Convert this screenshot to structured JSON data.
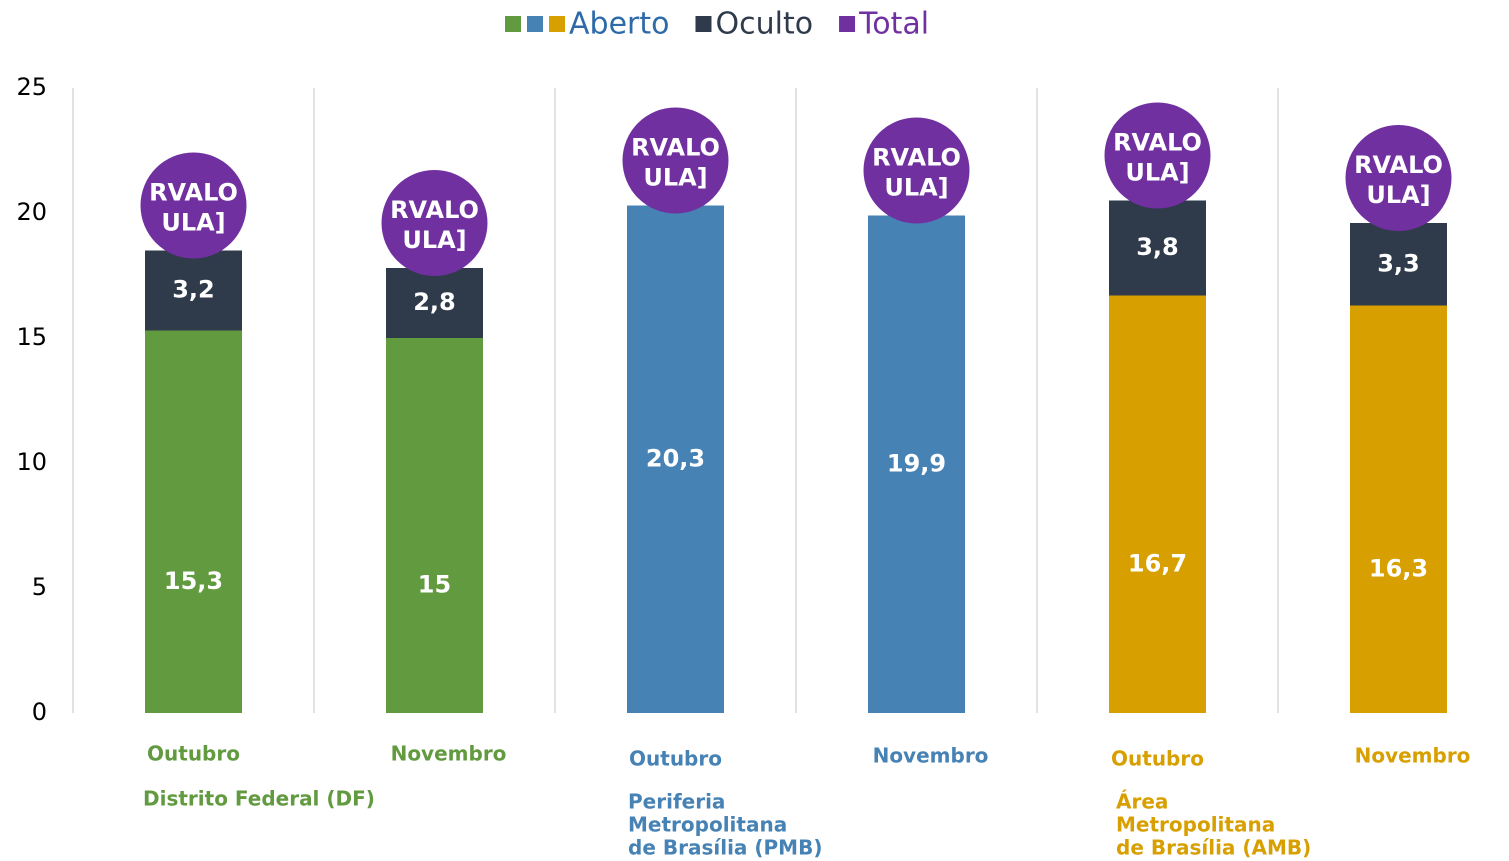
{
  "chart_data": {
    "type": "stacked_bar",
    "categories": [
      "Outubro",
      "Novembro",
      "Outubro",
      "Novembro",
      "Outubro",
      "Novembro"
    ],
    "groups": [
      {
        "label": [
          "Distrito Federal (DF)"
        ],
        "color": "#629a3f"
      },
      {
        "label": [
          "Periferia",
          "Metropolitana",
          "de Brasília (PMB)"
        ],
        "color": "#4682b4"
      },
      {
        "label": [
          "Área",
          "Metropolitana",
          "de Brasília (AMB)"
        ],
        "color": "#d89f00"
      }
    ],
    "series": [
      {
        "name": "Aberto",
        "colors": [
          "#629a3f",
          "#4682b4",
          "#d89f00"
        ],
        "legend_color": "#2e6aa8",
        "values": [
          15.3,
          15,
          20.3,
          19.9,
          16.7,
          16.3
        ],
        "value_labels": [
          "15,3",
          "15",
          "20,3",
          "19,9",
          "16,7",
          "16,3"
        ]
      },
      {
        "name": "Oculto",
        "color": "#2f3a4a",
        "legend_color": "#2f3a4a",
        "values": [
          3.2,
          2.8,
          null,
          null,
          3.8,
          3.3
        ],
        "value_labels": [
          "3,2",
          "2,8",
          null,
          null,
          "3,8",
          "3,3"
        ]
      },
      {
        "name": "Total",
        "color": "#7030a0",
        "legend_color": "#7030a0",
        "values": [
          20.3,
          19.6,
          22.1,
          21.7,
          22.3,
          21.4
        ],
        "value_labels": [
          [
            "RVALO",
            "ULA]"
          ],
          [
            "RVALO",
            "ULA]"
          ],
          [
            "RVALO",
            "ULA]"
          ],
          [
            "RVALO",
            "ULA]"
          ],
          [
            "RVALO",
            "ULA]"
          ],
          [
            "RVALO",
            "ULA]"
          ]
        ]
      }
    ],
    "ylim": [
      0,
      25
    ],
    "yticks": [
      0,
      5,
      10,
      15,
      20,
      25
    ],
    "grid": true
  }
}
